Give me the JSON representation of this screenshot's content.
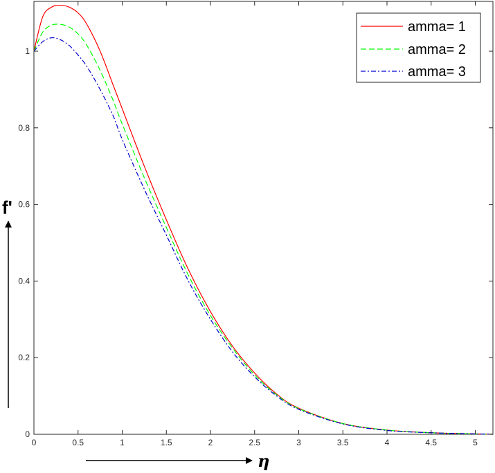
{
  "chart_data": {
    "type": "line",
    "xlabel": "η",
    "ylabel": "f'",
    "xlim": [
      0,
      5.2
    ],
    "ylim": [
      0,
      1.13
    ],
    "xticks": [
      0,
      0.5,
      1,
      1.5,
      2,
      2.5,
      3,
      3.5,
      4,
      4.5,
      5
    ],
    "xtick_labels": [
      "0",
      "0.5",
      "1",
      "1.5",
      "2",
      "2.5",
      "3",
      "3.5",
      "4",
      "4.5",
      "5"
    ],
    "yticks": [
      0,
      0.2,
      0.4,
      0.6,
      0.8,
      1
    ],
    "ytick_labels": [
      "0",
      "0.2",
      "0.4",
      "0.6",
      "0.8",
      "1"
    ],
    "grid": false,
    "legend_position": "top-right",
    "x": [
      0,
      0.1,
      0.2,
      0.3,
      0.4,
      0.5,
      0.6,
      0.75,
      0.9,
      1.0,
      1.25,
      1.5,
      1.75,
      2.0,
      2.25,
      2.5,
      2.75,
      3.0,
      3.5,
      4.0,
      4.5,
      5.0,
      5.2
    ],
    "series": [
      {
        "name": "amma= 1",
        "color": "#ff0000",
        "dash": "solid",
        "values": [
          1.0,
          1.09,
          1.115,
          1.12,
          1.115,
          1.1,
          1.07,
          1.0,
          0.91,
          0.85,
          0.7,
          0.56,
          0.43,
          0.32,
          0.23,
          0.16,
          0.105,
          0.068,
          0.028,
          0.011,
          0.004,
          0.001,
          0.0
        ]
      },
      {
        "name": "amma= 2",
        "color": "#00ff00",
        "dash": "dashed",
        "values": [
          1.0,
          1.05,
          1.068,
          1.07,
          1.063,
          1.045,
          1.015,
          0.95,
          0.87,
          0.81,
          0.67,
          0.54,
          0.415,
          0.31,
          0.225,
          0.155,
          0.103,
          0.067,
          0.028,
          0.011,
          0.004,
          0.001,
          0.0
        ]
      },
      {
        "name": "amma= 3",
        "color": "#0000cc",
        "dash": "dashdot",
        "values": [
          1.0,
          1.025,
          1.035,
          1.03,
          1.015,
          0.99,
          0.96,
          0.9,
          0.83,
          0.77,
          0.64,
          0.52,
          0.4,
          0.3,
          0.215,
          0.15,
          0.1,
          0.065,
          0.027,
          0.01,
          0.004,
          0.001,
          0.0
        ]
      }
    ]
  }
}
